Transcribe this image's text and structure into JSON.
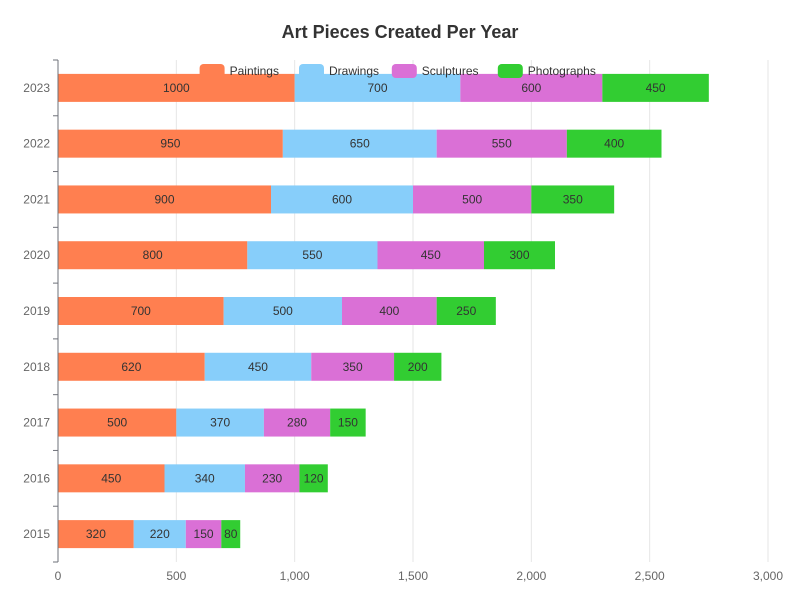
{
  "chart_data": {
    "type": "bar",
    "orientation": "horizontal",
    "stacked": true,
    "title": "Art Pieces Created Per Year",
    "categories": [
      "2015",
      "2016",
      "2017",
      "2018",
      "2019",
      "2020",
      "2021",
      "2022",
      "2023"
    ],
    "series": [
      {
        "name": "Paintings",
        "color": "#ff7f50",
        "values": [
          320,
          450,
          500,
          620,
          700,
          800,
          900,
          950,
          1000
        ]
      },
      {
        "name": "Drawings",
        "color": "#87cefa",
        "values": [
          220,
          340,
          370,
          450,
          500,
          550,
          600,
          650,
          700
        ]
      },
      {
        "name": "Sculptures",
        "color": "#da70d6",
        "values": [
          150,
          230,
          280,
          350,
          400,
          450,
          500,
          550,
          600
        ]
      },
      {
        "name": "Photographs",
        "color": "#32cd32",
        "values": [
          80,
          120,
          150,
          200,
          250,
          300,
          350,
          400,
          450
        ]
      }
    ],
    "xlim": [
      0,
      3000
    ],
    "x_ticks": [
      0,
      500,
      1000,
      1500,
      2000,
      2500,
      3000
    ],
    "x_tick_labels": [
      "0",
      "500",
      "1,000",
      "1,500",
      "2,000",
      "2,500",
      "3,000"
    ],
    "xlabel": "",
    "ylabel": "",
    "grid": "vertical",
    "legend_position": "top-center",
    "data_labels": "inside"
  }
}
